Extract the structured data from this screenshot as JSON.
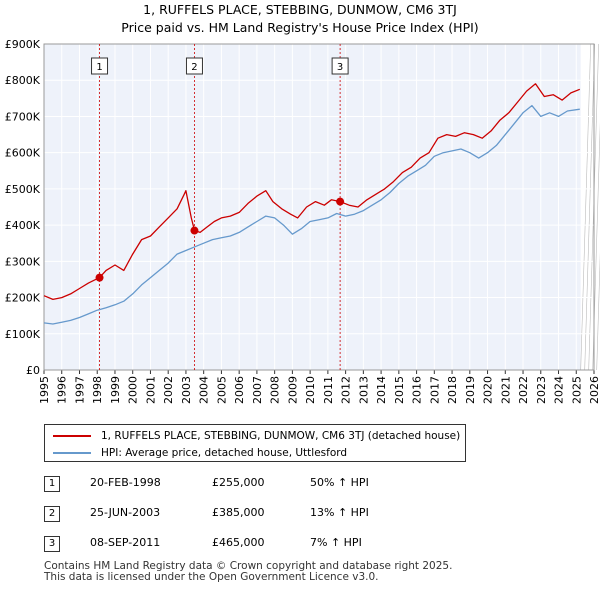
{
  "chart_data": {
    "type": "line",
    "title": "1, RUFFELS PLACE, STEBBING, DUNMOW, CM6 3TJ",
    "subtitle": "Price paid vs. HM Land Registry's House Price Index (HPI)",
    "xlim": [
      1995,
      2026
    ],
    "ylim": [
      0,
      900000
    ],
    "yticks": [
      0,
      100000,
      200000,
      300000,
      400000,
      500000,
      600000,
      700000,
      800000,
      900000
    ],
    "ytick_labels": [
      "£0",
      "£100K",
      "£200K",
      "£300K",
      "£400K",
      "£500K",
      "£600K",
      "£700K",
      "£800K",
      "£900K"
    ],
    "xticks": [
      "1995",
      "1996",
      "1997",
      "1998",
      "1999",
      "2000",
      "2001",
      "2002",
      "2003",
      "2004",
      "2005",
      "2006",
      "2007",
      "2008",
      "2009",
      "2010",
      "2011",
      "2012",
      "2013",
      "2014",
      "2015",
      "2016",
      "2017",
      "2018",
      "2019",
      "2020",
      "2021",
      "2022",
      "2023",
      "2024",
      "2025",
      "2026"
    ],
    "grid": true,
    "data_end_year": 2025.25,
    "series": [
      {
        "name": "1, RUFFELS PLACE, STEBBING, DUNMOW, CM6 3TJ (detached house)",
        "color": "#cc0000",
        "x": [
          1995.0,
          1995.5,
          1996.0,
          1996.5,
          1997.0,
          1997.5,
          1998.13,
          1998.5,
          1999.0,
          1999.5,
          2000.0,
          2000.5,
          2001.0,
          2001.5,
          2002.0,
          2002.5,
          2002.9,
          2003.0,
          2003.3,
          2003.48,
          2003.8,
          2004.2,
          2004.6,
          2005.0,
          2005.5,
          2006.0,
          2006.5,
          2007.0,
          2007.5,
          2007.9,
          2008.4,
          2008.9,
          2009.3,
          2009.8,
          2010.3,
          2010.8,
          2011.2,
          2011.69,
          2012.2,
          2012.7,
          2013.2,
          2013.7,
          2014.2,
          2014.7,
          2015.2,
          2015.7,
          2016.2,
          2016.7,
          2017.2,
          2017.7,
          2018.2,
          2018.7,
          2019.2,
          2019.7,
          2020.2,
          2020.7,
          2021.2,
          2021.7,
          2022.2,
          2022.7,
          2023.2,
          2023.7,
          2024.2,
          2024.7,
          2025.2
        ],
        "y": [
          205000,
          195000,
          200000,
          210000,
          225000,
          240000,
          255000,
          275000,
          290000,
          275000,
          320000,
          360000,
          370000,
          395000,
          420000,
          445000,
          485000,
          495000,
          420000,
          385000,
          380000,
          395000,
          410000,
          420000,
          425000,
          435000,
          460000,
          480000,
          495000,
          465000,
          445000,
          430000,
          420000,
          450000,
          465000,
          455000,
          470000,
          465000,
          455000,
          450000,
          470000,
          485000,
          500000,
          520000,
          545000,
          560000,
          585000,
          600000,
          640000,
          650000,
          645000,
          655000,
          650000,
          640000,
          660000,
          690000,
          710000,
          740000,
          770000,
          790000,
          755000,
          760000,
          745000,
          765000,
          775000
        ]
      },
      {
        "name": "HPI: Average price, detached house, Uttlesford",
        "color": "#6699cc",
        "x": [
          1995.0,
          1995.5,
          1996.0,
          1996.5,
          1997.0,
          1997.5,
          1998.0,
          1998.5,
          1999.0,
          1999.5,
          2000.0,
          2000.5,
          2001.0,
          2001.5,
          2002.0,
          2002.5,
          2003.0,
          2003.5,
          2004.0,
          2004.5,
          2005.0,
          2005.5,
          2006.0,
          2006.5,
          2007.0,
          2007.5,
          2008.0,
          2008.5,
          2009.0,
          2009.5,
          2010.0,
          2010.5,
          2011.0,
          2011.5,
          2012.0,
          2012.5,
          2013.0,
          2013.5,
          2014.0,
          2014.5,
          2015.0,
          2015.5,
          2016.0,
          2016.5,
          2017.0,
          2017.5,
          2018.0,
          2018.5,
          2019.0,
          2019.5,
          2020.0,
          2020.5,
          2021.0,
          2021.5,
          2022.0,
          2022.5,
          2023.0,
          2023.5,
          2024.0,
          2024.5,
          2025.2
        ],
        "y": [
          130000,
          127000,
          132000,
          137000,
          145000,
          155000,
          165000,
          172000,
          180000,
          190000,
          210000,
          235000,
          255000,
          275000,
          295000,
          320000,
          330000,
          340000,
          350000,
          360000,
          365000,
          370000,
          380000,
          395000,
          410000,
          425000,
          420000,
          400000,
          375000,
          390000,
          410000,
          415000,
          420000,
          432000,
          425000,
          430000,
          440000,
          455000,
          470000,
          490000,
          515000,
          535000,
          550000,
          565000,
          590000,
          600000,
          605000,
          610000,
          600000,
          585000,
          600000,
          620000,
          650000,
          680000,
          710000,
          730000,
          700000,
          710000,
          700000,
          715000,
          720000
        ]
      }
    ],
    "sale_markers": [
      {
        "label": "1",
        "x": 1998.13,
        "y": 255000
      },
      {
        "label": "2",
        "x": 2003.48,
        "y": 385000
      },
      {
        "label": "3",
        "x": 2011.69,
        "y": 465000
      }
    ]
  },
  "legend": {
    "property_label": "1, RUFFELS PLACE, STEBBING, DUNMOW, CM6 3TJ (detached house)",
    "hpi_label": "HPI: Average price, detached house, Uttlesford"
  },
  "sales": [
    {
      "num": "1",
      "date": "20-FEB-1998",
      "price": "£255,000",
      "hpi": "50% ↑ HPI"
    },
    {
      "num": "2",
      "date": "25-JUN-2003",
      "price": "£385,000",
      "hpi": "13% ↑ HPI"
    },
    {
      "num": "3",
      "date": "08-SEP-2011",
      "price": "£465,000",
      "hpi": "7% ↑ HPI"
    }
  ],
  "footer": {
    "line1": "Contains HM Land Registry data © Crown copyright and database right 2025.",
    "line2": "This data is licensed under the Open Government Licence v3.0."
  }
}
